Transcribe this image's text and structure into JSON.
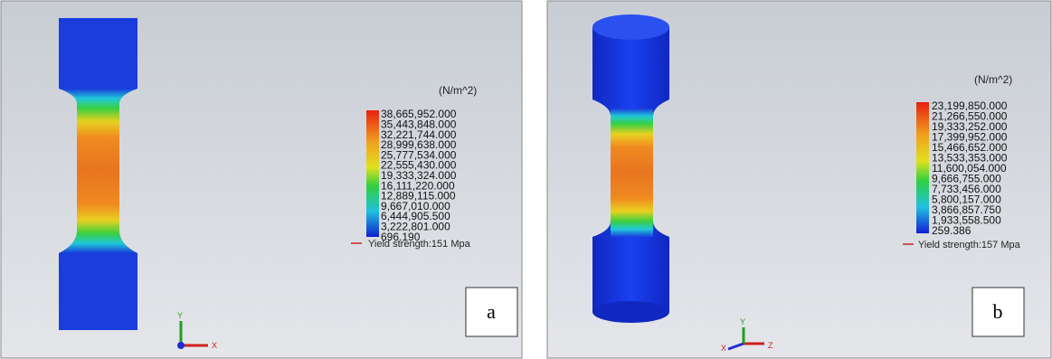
{
  "panels": [
    {
      "label": "a",
      "unit": "(N/m^2)",
      "yield": "Yield strength:151 Mpa",
      "axis_labels": [
        "Y",
        "X"
      ],
      "legend": [
        "38,665,952.000",
        "35,443,848.000",
        "32,221,744.000",
        "28,999,638.000",
        "25,777,534.000",
        "22,555,430.000",
        "19,333,324.000",
        "16,111,220.000",
        "12,889,115.000",
        "9,667,010.000",
        "6,444,905.500",
        "3,222,801.000",
        "696.190"
      ]
    },
    {
      "label": "b",
      "unit": "(N/m^2)",
      "yield": "Yield strength:157 Mpa",
      "axis_labels": [
        "Y",
        "Z",
        "X"
      ],
      "legend": [
        "23,199,850.000",
        "21,266,550.000",
        "19,333,252.000",
        "17,399,952.000",
        "15,466,652.000",
        "13,533,353.000",
        "11,600,054.000",
        "9,666,755.000",
        "7,733,456.000",
        "5,800,157.000",
        "3,866,857.750",
        "1,933,558.500",
        "259.386"
      ]
    }
  ]
}
